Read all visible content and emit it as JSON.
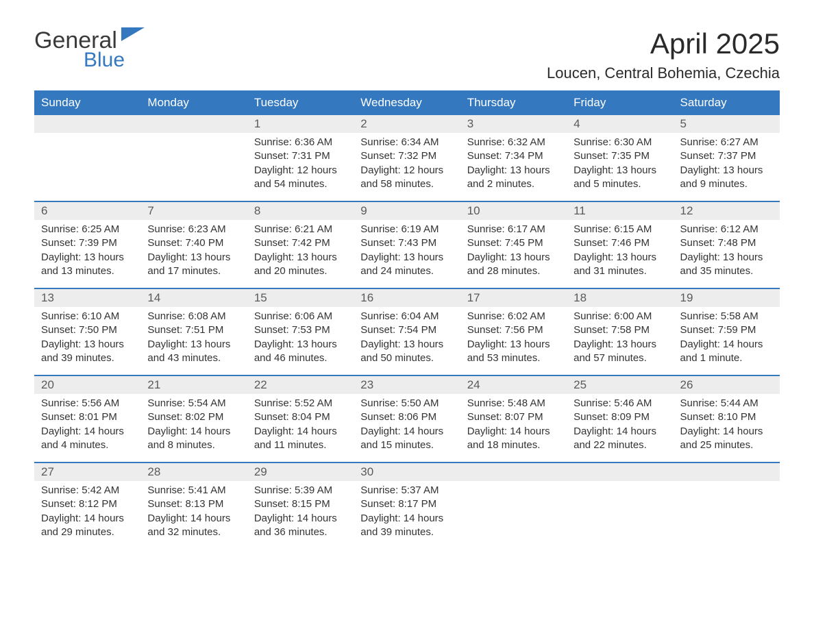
{
  "logo": {
    "main": "General",
    "sub": "Blue",
    "accent_color": "#3478c0",
    "text_color": "#3a3a3a"
  },
  "title": "April 2025",
  "subtitle": "Loucen, Central Bohemia, Czechia",
  "colors": {
    "header_bg": "#3478c0",
    "header_text": "#ffffff",
    "daynum_bg": "#ededed",
    "week_border": "#3478c0",
    "body_text": "#333333"
  },
  "weekdays": [
    "Sunday",
    "Monday",
    "Tuesday",
    "Wednesday",
    "Thursday",
    "Friday",
    "Saturday"
  ],
  "weeks": [
    [
      {
        "day": "",
        "sunrise": "",
        "sunset": "",
        "daylight": ""
      },
      {
        "day": "",
        "sunrise": "",
        "sunset": "",
        "daylight": ""
      },
      {
        "day": "1",
        "sunrise": "Sunrise: 6:36 AM",
        "sunset": "Sunset: 7:31 PM",
        "daylight": "Daylight: 12 hours and 54 minutes."
      },
      {
        "day": "2",
        "sunrise": "Sunrise: 6:34 AM",
        "sunset": "Sunset: 7:32 PM",
        "daylight": "Daylight: 12 hours and 58 minutes."
      },
      {
        "day": "3",
        "sunrise": "Sunrise: 6:32 AM",
        "sunset": "Sunset: 7:34 PM",
        "daylight": "Daylight: 13 hours and 2 minutes."
      },
      {
        "day": "4",
        "sunrise": "Sunrise: 6:30 AM",
        "sunset": "Sunset: 7:35 PM",
        "daylight": "Daylight: 13 hours and 5 minutes."
      },
      {
        "day": "5",
        "sunrise": "Sunrise: 6:27 AM",
        "sunset": "Sunset: 7:37 PM",
        "daylight": "Daylight: 13 hours and 9 minutes."
      }
    ],
    [
      {
        "day": "6",
        "sunrise": "Sunrise: 6:25 AM",
        "sunset": "Sunset: 7:39 PM",
        "daylight": "Daylight: 13 hours and 13 minutes."
      },
      {
        "day": "7",
        "sunrise": "Sunrise: 6:23 AM",
        "sunset": "Sunset: 7:40 PM",
        "daylight": "Daylight: 13 hours and 17 minutes."
      },
      {
        "day": "8",
        "sunrise": "Sunrise: 6:21 AM",
        "sunset": "Sunset: 7:42 PM",
        "daylight": "Daylight: 13 hours and 20 minutes."
      },
      {
        "day": "9",
        "sunrise": "Sunrise: 6:19 AM",
        "sunset": "Sunset: 7:43 PM",
        "daylight": "Daylight: 13 hours and 24 minutes."
      },
      {
        "day": "10",
        "sunrise": "Sunrise: 6:17 AM",
        "sunset": "Sunset: 7:45 PM",
        "daylight": "Daylight: 13 hours and 28 minutes."
      },
      {
        "day": "11",
        "sunrise": "Sunrise: 6:15 AM",
        "sunset": "Sunset: 7:46 PM",
        "daylight": "Daylight: 13 hours and 31 minutes."
      },
      {
        "day": "12",
        "sunrise": "Sunrise: 6:12 AM",
        "sunset": "Sunset: 7:48 PM",
        "daylight": "Daylight: 13 hours and 35 minutes."
      }
    ],
    [
      {
        "day": "13",
        "sunrise": "Sunrise: 6:10 AM",
        "sunset": "Sunset: 7:50 PM",
        "daylight": "Daylight: 13 hours and 39 minutes."
      },
      {
        "day": "14",
        "sunrise": "Sunrise: 6:08 AM",
        "sunset": "Sunset: 7:51 PM",
        "daylight": "Daylight: 13 hours and 43 minutes."
      },
      {
        "day": "15",
        "sunrise": "Sunrise: 6:06 AM",
        "sunset": "Sunset: 7:53 PM",
        "daylight": "Daylight: 13 hours and 46 minutes."
      },
      {
        "day": "16",
        "sunrise": "Sunrise: 6:04 AM",
        "sunset": "Sunset: 7:54 PM",
        "daylight": "Daylight: 13 hours and 50 minutes."
      },
      {
        "day": "17",
        "sunrise": "Sunrise: 6:02 AM",
        "sunset": "Sunset: 7:56 PM",
        "daylight": "Daylight: 13 hours and 53 minutes."
      },
      {
        "day": "18",
        "sunrise": "Sunrise: 6:00 AM",
        "sunset": "Sunset: 7:58 PM",
        "daylight": "Daylight: 13 hours and 57 minutes."
      },
      {
        "day": "19",
        "sunrise": "Sunrise: 5:58 AM",
        "sunset": "Sunset: 7:59 PM",
        "daylight": "Daylight: 14 hours and 1 minute."
      }
    ],
    [
      {
        "day": "20",
        "sunrise": "Sunrise: 5:56 AM",
        "sunset": "Sunset: 8:01 PM",
        "daylight": "Daylight: 14 hours and 4 minutes."
      },
      {
        "day": "21",
        "sunrise": "Sunrise: 5:54 AM",
        "sunset": "Sunset: 8:02 PM",
        "daylight": "Daylight: 14 hours and 8 minutes."
      },
      {
        "day": "22",
        "sunrise": "Sunrise: 5:52 AM",
        "sunset": "Sunset: 8:04 PM",
        "daylight": "Daylight: 14 hours and 11 minutes."
      },
      {
        "day": "23",
        "sunrise": "Sunrise: 5:50 AM",
        "sunset": "Sunset: 8:06 PM",
        "daylight": "Daylight: 14 hours and 15 minutes."
      },
      {
        "day": "24",
        "sunrise": "Sunrise: 5:48 AM",
        "sunset": "Sunset: 8:07 PM",
        "daylight": "Daylight: 14 hours and 18 minutes."
      },
      {
        "day": "25",
        "sunrise": "Sunrise: 5:46 AM",
        "sunset": "Sunset: 8:09 PM",
        "daylight": "Daylight: 14 hours and 22 minutes."
      },
      {
        "day": "26",
        "sunrise": "Sunrise: 5:44 AM",
        "sunset": "Sunset: 8:10 PM",
        "daylight": "Daylight: 14 hours and 25 minutes."
      }
    ],
    [
      {
        "day": "27",
        "sunrise": "Sunrise: 5:42 AM",
        "sunset": "Sunset: 8:12 PM",
        "daylight": "Daylight: 14 hours and 29 minutes."
      },
      {
        "day": "28",
        "sunrise": "Sunrise: 5:41 AM",
        "sunset": "Sunset: 8:13 PM",
        "daylight": "Daylight: 14 hours and 32 minutes."
      },
      {
        "day": "29",
        "sunrise": "Sunrise: 5:39 AM",
        "sunset": "Sunset: 8:15 PM",
        "daylight": "Daylight: 14 hours and 36 minutes."
      },
      {
        "day": "30",
        "sunrise": "Sunrise: 5:37 AM",
        "sunset": "Sunset: 8:17 PM",
        "daylight": "Daylight: 14 hours and 39 minutes."
      },
      {
        "day": "",
        "sunrise": "",
        "sunset": "",
        "daylight": ""
      },
      {
        "day": "",
        "sunrise": "",
        "sunset": "",
        "daylight": ""
      },
      {
        "day": "",
        "sunrise": "",
        "sunset": "",
        "daylight": ""
      }
    ]
  ]
}
